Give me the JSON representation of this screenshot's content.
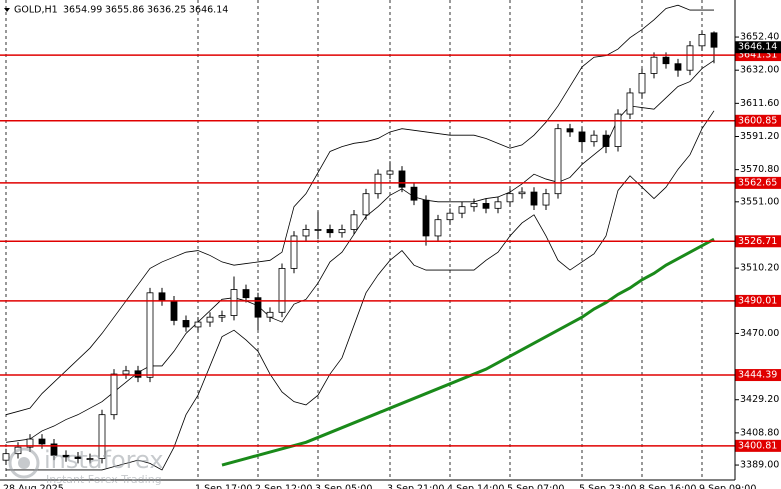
{
  "chart_data": {
    "type": "candlestick",
    "title": "GOLD,H1",
    "watermark": {
      "brand": "instaforex",
      "tagline": "Instant Forex Trading"
    },
    "categories": [
      "28 Aug 2025",
      null,
      null,
      null,
      null,
      null,
      null,
      null,
      null,
      null,
      null,
      null,
      null,
      null,
      null,
      null,
      "1 Sep 17:00",
      null,
      null,
      null,
      null,
      "2 Sep 12:00",
      null,
      null,
      null,
      null,
      "3 Sep 05:00",
      null,
      null,
      null,
      null,
      null,
      "3 Sep 21:00",
      null,
      null,
      null,
      null,
      "4 Sep 14:00",
      null,
      null,
      null,
      null,
      "5 Sep 07:00",
      null,
      null,
      null,
      null,
      null,
      "5 Sep 23:00",
      null,
      null,
      null,
      null,
      "8 Sep 16:00",
      null,
      null,
      null,
      null,
      "9 Sep 09:00",
      null
    ],
    "open": [
      3392,
      3396,
      3400,
      3405,
      3402,
      3395,
      3394,
      3393,
      3393,
      3420,
      3445,
      3447,
      3443,
      3495,
      3490,
      3478,
      3474,
      3477,
      3480,
      3481,
      3497,
      3492,
      3480,
      3483,
      3510,
      3530,
      3534,
      3534,
      3532,
      3534,
      3543,
      3556,
      3568,
      3570,
      3560,
      3552,
      3530,
      3540,
      3544,
      3548,
      3550,
      3547,
      3551,
      3556,
      3557,
      3549,
      3556,
      3596,
      3594,
      3588,
      3592,
      3585,
      3605,
      3618,
      3630,
      3640,
      3636,
      3632,
      3647,
      3654.99
    ],
    "high": [
      3399,
      3403,
      3408,
      3408,
      3405,
      3398,
      3397,
      3396,
      3423,
      3448,
      3450,
      3450,
      3498,
      3498,
      3493,
      3481,
      3480,
      3483,
      3484,
      3505,
      3500,
      3495,
      3486,
      3513,
      3533,
      3537,
      3545,
      3537,
      3537,
      3546,
      3559,
      3571,
      3576,
      3573,
      3563,
      3555,
      3543,
      3547,
      3551,
      3553,
      3553,
      3554,
      3559,
      3560,
      3560,
      3559,
      3599,
      3599,
      3597,
      3595,
      3595,
      3608,
      3621,
      3633,
      3643,
      3643,
      3639,
      3650,
      3656,
      3655.86
    ],
    "low": [
      3389,
      3393,
      3397,
      3399,
      3392,
      3391,
      3390,
      3390,
      3390,
      3417,
      3442,
      3440,
      3440,
      3487,
      3475,
      3471,
      3471,
      3474,
      3477,
      3478,
      3489,
      3472,
      3477,
      3480,
      3507,
      3527,
      3528,
      3529,
      3529,
      3531,
      3540,
      3553,
      3565,
      3557,
      3549,
      3524,
      3527,
      3537,
      3541,
      3545,
      3544,
      3544,
      3548,
      3553,
      3546,
      3546,
      3553,
      3591,
      3582,
      3585,
      3581,
      3582,
      3602,
      3615,
      3627,
      3633,
      3628,
      3629,
      3644,
      3636.25
    ],
    "close": [
      3396,
      3400,
      3405,
      3402,
      3395,
      3394,
      3393,
      3393,
      3420,
      3445,
      3447,
      3443,
      3495,
      3490,
      3478,
      3474,
      3477,
      3480,
      3481,
      3497,
      3492,
      3480,
      3483,
      3510,
      3530,
      3534,
      3534,
      3532,
      3534,
      3543,
      3556,
      3568,
      3570,
      3560,
      3552,
      3530,
      3540,
      3544,
      3548,
      3550,
      3547,
      3551,
      3556,
      3557,
      3549,
      3556,
      3596,
      3594,
      3588,
      3592,
      3585,
      3605,
      3618,
      3630,
      3640,
      3636,
      3632,
      3647,
      3654,
      3646.14
    ],
    "up_color": "#ffffff",
    "down_color": "#000000",
    "series": [
      {
        "name": "MA",
        "color": "#1a8a1a",
        "values": [
          null,
          null,
          null,
          null,
          null,
          null,
          null,
          null,
          null,
          null,
          null,
          null,
          null,
          null,
          null,
          null,
          null,
          null,
          3389,
          3391,
          3393,
          3395,
          3397,
          3399,
          3401,
          3403,
          3406,
          3409,
          3412,
          3415,
          3418,
          3421,
          3424,
          3427,
          3430,
          3433,
          3436,
          3439,
          3442,
          3445,
          3448,
          3452,
          3456,
          3460,
          3464,
          3468,
          3472,
          3476,
          3480,
          3485,
          3489,
          3494,
          3498,
          3503,
          3507,
          3512,
          3516,
          3520,
          3524,
          3528
        ]
      },
      {
        "name": "BB upper",
        "color": "#000000",
        "values": [
          3420,
          3422,
          3424,
          3433,
          3440,
          3447,
          3454,
          3461,
          3470,
          3480,
          3490,
          3500,
          3510,
          3514,
          3517,
          3520,
          3521,
          3518,
          3514,
          3512,
          3513,
          3514,
          3515,
          3520,
          3548,
          3556,
          3569,
          3582,
          3585,
          3587,
          3588,
          3590,
          3594,
          3596,
          3595,
          3594,
          3593,
          3592,
          3592,
          3592,
          3590,
          3587,
          3584,
          3586,
          3592,
          3600,
          3610,
          3622,
          3634,
          3640,
          3641,
          3645,
          3652,
          3657,
          3663,
          3670,
          3672,
          3669,
          3669,
          3669
        ]
      },
      {
        "name": "BB middle",
        "color": "#000000",
        "values": [
          3403,
          3404,
          3405,
          3410,
          3413,
          3417,
          3420,
          3424,
          3428,
          3434,
          3440,
          3446,
          3450,
          3450,
          3459,
          3470,
          3477,
          3484,
          3491,
          3492,
          3490,
          3487,
          3480,
          3477,
          3488,
          3491,
          3501,
          3514,
          3520,
          3531,
          3542,
          3548,
          3555,
          3559,
          3554,
          3552,
          3551,
          3551,
          3551,
          3551,
          3553,
          3554,
          3557,
          3562,
          3568,
          3565,
          3563,
          3566,
          3574,
          3580,
          3586,
          3602,
          3610,
          3609,
          3608,
          3615,
          3622,
          3625,
          3633,
          3638
        ]
      },
      {
        "name": "BB lower",
        "color": "#000000",
        "values": [
          3386,
          3386,
          3386,
          3386,
          3386,
          3386,
          3386,
          3386,
          3386,
          3388,
          3390,
          3392,
          3390,
          3386,
          3400,
          3420,
          3432,
          3450,
          3468,
          3472,
          3466,
          3459,
          3445,
          3434,
          3428,
          3426,
          3432,
          3445,
          3455,
          3475,
          3495,
          3506,
          3515,
          3521,
          3512,
          3509,
          3509,
          3509,
          3509,
          3509,
          3515,
          3520,
          3530,
          3538,
          3543,
          3530,
          3515,
          3509,
          3514,
          3519,
          3530,
          3558,
          3567,
          3560,
          3553,
          3560,
          3571,
          3580,
          3596,
          3607
        ]
      }
    ],
    "levels": [
      3641.31,
      3600.85,
      3562.65,
      3526.71,
      3490.01,
      3444.39,
      3400.81
    ],
    "level_color": "#e00000",
    "ylim": [
      3379.8,
      3675.2
    ],
    "yticks": [
      {
        "value": 3652.4,
        "label": "3652.40"
      },
      {
        "value": 3632,
        "label": "3632.00"
      },
      {
        "value": 3611.6,
        "label": "3611.60"
      },
      {
        "value": 3591.2,
        "label": "3591.20"
      },
      {
        "value": 3570.8,
        "label": "3570.80"
      },
      {
        "value": 3551,
        "label": "3551.00"
      },
      {
        "value": 3510.2,
        "label": "3510.20"
      },
      {
        "value": 3470,
        "label": "3470.00"
      },
      {
        "value": 3429.2,
        "label": "3429.20"
      },
      {
        "value": 3408.8,
        "label": "3408.80"
      },
      {
        "value": 3389,
        "label": "3389.00"
      }
    ],
    "grid": true
  }
}
